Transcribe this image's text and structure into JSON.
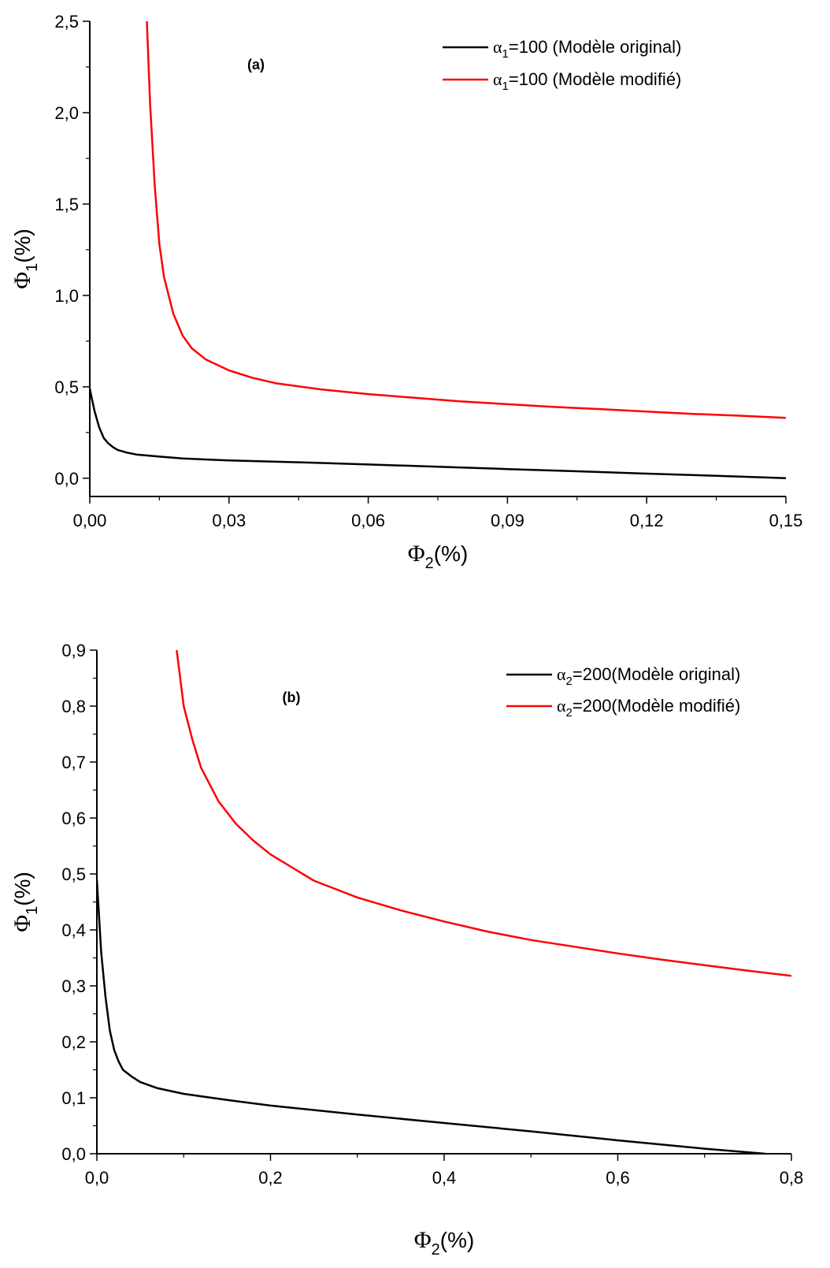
{
  "chart_data": [
    {
      "type": "line",
      "panel_label": "(a)",
      "xlabel": {
        "symbol": "Φ",
        "sub": "2",
        "rest": "(%)"
      },
      "ylabel": {
        "symbol": "Φ",
        "sub": "1",
        "rest": "(%)"
      },
      "xlim": [
        0,
        0.15
      ],
      "ylim": [
        -0.1,
        2.5
      ],
      "xticks": [
        0,
        0.03,
        0.06,
        0.09,
        0.12,
        0.15
      ],
      "xtick_labels": [
        "0,00",
        "0,03",
        "0,06",
        "0,09",
        "0,12",
        "0,15"
      ],
      "yticks": [
        0,
        0.5,
        1.0,
        1.5,
        2.0,
        2.5
      ],
      "ytick_labels": [
        "0,0",
        "0,5",
        "1,0",
        "1,5",
        "2,0",
        "2,5"
      ],
      "legend_position": "top-right",
      "series": [
        {
          "legend": {
            "symbol": "α",
            "sub": "1",
            "rest": "=100 (Modèle original)"
          },
          "color": "#000000",
          "x": [
            0,
            0.001,
            0.002,
            0.003,
            0.004,
            0.005,
            0.006,
            0.008,
            0.01,
            0.015,
            0.02,
            0.03,
            0.045,
            0.06,
            0.075,
            0.09,
            0.105,
            0.12,
            0.135,
            0.15
          ],
          "y": [
            0.49,
            0.37,
            0.28,
            0.22,
            0.19,
            0.17,
            0.155,
            0.14,
            0.13,
            0.118,
            0.108,
            0.097,
            0.087,
            0.075,
            0.063,
            0.05,
            0.038,
            0.025,
            0.013,
            0.0
          ]
        },
        {
          "legend": {
            "symbol": "α",
            "sub": "1",
            "rest": "=100 (Modèle modifié)"
          },
          "color": "#ff0000",
          "x": [
            0.0123,
            0.013,
            0.014,
            0.015,
            0.016,
            0.018,
            0.02,
            0.022,
            0.025,
            0.03,
            0.035,
            0.04,
            0.05,
            0.06,
            0.07,
            0.08,
            0.09,
            0.1,
            0.11,
            0.12,
            0.13,
            0.14,
            0.15
          ],
          "y": [
            2.5,
            2.05,
            1.6,
            1.28,
            1.1,
            0.9,
            0.78,
            0.71,
            0.65,
            0.59,
            0.55,
            0.52,
            0.485,
            0.46,
            0.44,
            0.42,
            0.405,
            0.39,
            0.378,
            0.365,
            0.352,
            0.342,
            0.33
          ]
        }
      ]
    },
    {
      "type": "line",
      "panel_label": "(b)",
      "xlabel": {
        "symbol": "Φ",
        "sub": "2",
        "rest": "(%)"
      },
      "ylabel": {
        "symbol": "Φ",
        "sub": "1",
        "rest": "(%)"
      },
      "xlim": [
        0,
        0.8
      ],
      "ylim": [
        0,
        0.9
      ],
      "xticks": [
        0,
        0.2,
        0.4,
        0.6,
        0.8
      ],
      "xtick_labels": [
        "0,0",
        "0,2",
        "0,4",
        "0,6",
        "0,8"
      ],
      "yticks": [
        0,
        0.1,
        0.2,
        0.3,
        0.4,
        0.5,
        0.6,
        0.7,
        0.8,
        0.9
      ],
      "ytick_labels": [
        "0,0",
        "0,1",
        "0,2",
        "0,3",
        "0,4",
        "0,5",
        "0,6",
        "0,7",
        "0,8",
        "0,9"
      ],
      "legend_position": "top-right",
      "series": [
        {
          "legend": {
            "symbol": "α",
            "sub": "2",
            "rest": "=200(Modèle original)"
          },
          "color": "#000000",
          "x": [
            0,
            0.005,
            0.01,
            0.015,
            0.02,
            0.025,
            0.03,
            0.04,
            0.05,
            0.07,
            0.1,
            0.15,
            0.2,
            0.3,
            0.4,
            0.5,
            0.6,
            0.7,
            0.77
          ],
          "y": [
            0.49,
            0.36,
            0.28,
            0.22,
            0.185,
            0.165,
            0.15,
            0.138,
            0.128,
            0.117,
            0.107,
            0.096,
            0.086,
            0.07,
            0.055,
            0.04,
            0.024,
            0.009,
            0.0
          ]
        },
        {
          "legend": {
            "symbol": "α",
            "sub": "2",
            "rest": "=200(Modèle modifié)"
          },
          "color": "#ff0000",
          "x": [
            0.092,
            0.1,
            0.11,
            0.12,
            0.14,
            0.16,
            0.18,
            0.2,
            0.25,
            0.3,
            0.35,
            0.4,
            0.45,
            0.5,
            0.55,
            0.6,
            0.65,
            0.7,
            0.75,
            0.8
          ],
          "y": [
            0.9,
            0.8,
            0.74,
            0.69,
            0.63,
            0.59,
            0.56,
            0.535,
            0.488,
            0.458,
            0.435,
            0.415,
            0.397,
            0.382,
            0.37,
            0.358,
            0.347,
            0.337,
            0.327,
            0.318
          ]
        }
      ]
    }
  ]
}
